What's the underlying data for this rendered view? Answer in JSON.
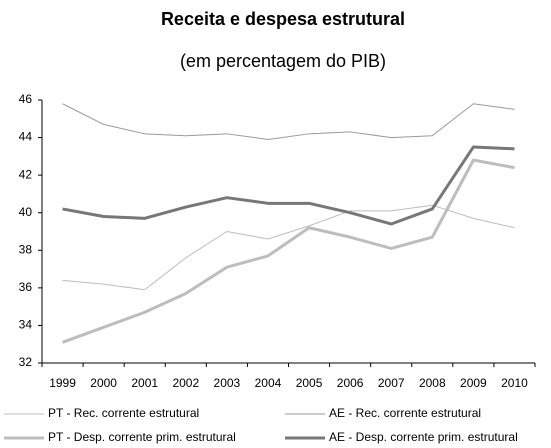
{
  "chart_data": {
    "type": "line",
    "title": "Receita e despesa estrutural",
    "subtitle": "(em percentagem do PIB)",
    "categories": [
      "1999",
      "2000",
      "2001",
      "2002",
      "2003",
      "2004",
      "2005",
      "2006",
      "2007",
      "2008",
      "2009",
      "2010"
    ],
    "series": [
      {
        "name": "PT - Rec. corrente estrutural",
        "color": "#bdbdbd",
        "line_width": 1,
        "values": [
          36.4,
          36.2,
          35.9,
          37.6,
          39.0,
          38.6,
          39.3,
          40.1,
          40.1,
          40.4,
          39.7,
          39.2
        ]
      },
      {
        "name": "AE - Rec. corrente estrutural",
        "color": "#9a9a9a",
        "line_width": 1,
        "values": [
          45.8,
          44.7,
          44.2,
          44.1,
          44.2,
          43.9,
          44.2,
          44.3,
          44.0,
          44.1,
          45.8,
          45.5
        ]
      },
      {
        "name": "PT - Desp. corrente prim. estrutural",
        "color": "#bdbdbd",
        "line_width": 3,
        "values": [
          33.1,
          33.9,
          34.7,
          35.7,
          37.1,
          37.7,
          39.2,
          38.7,
          38.1,
          38.7,
          42.8,
          42.4
        ]
      },
      {
        "name": "AE - Desp. corrente prim. estrutural",
        "color": "#777777",
        "line_width": 3,
        "values": [
          40.2,
          39.8,
          39.7,
          40.3,
          40.8,
          40.5,
          40.5,
          40.0,
          39.4,
          40.2,
          43.5,
          43.4
        ]
      }
    ],
    "ylim": [
      32,
      46
    ],
    "yticks": [
      32,
      34,
      36,
      38,
      40,
      42,
      44,
      46
    ],
    "grid": false
  }
}
